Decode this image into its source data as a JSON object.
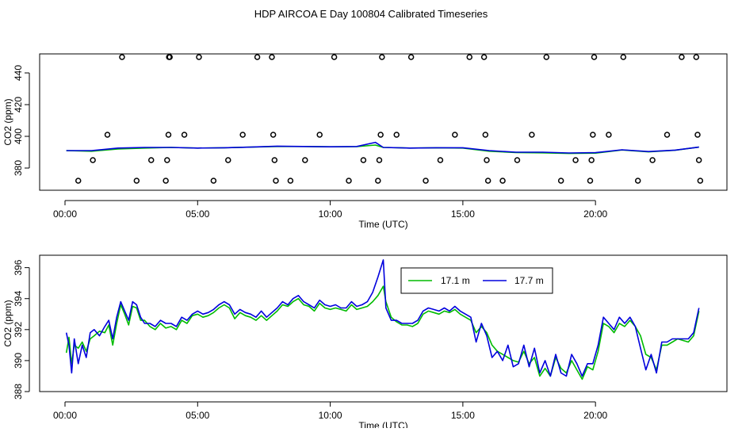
{
  "title": "HDP AIRCOA E  Day 100804  Calibrated Timeseries",
  "colors": {
    "green": "#00bb00",
    "blue": "#0000dd",
    "axis": "#000000"
  },
  "chart_data": [
    {
      "type": "line",
      "name": "top-panel",
      "xlabel": "Time (UTC)",
      "ylabel": "CO2 (ppm)",
      "x_unit": "hours UTC",
      "xlim": [
        0,
        24
      ],
      "ylim": [
        366,
        452
      ],
      "x_ticks": [
        0,
        5,
        10,
        15,
        20
      ],
      "x_tick_labels": [
        "00:00",
        "05:00",
        "10:00",
        "15:00",
        "20:00"
      ],
      "y_ticks": [
        380,
        400,
        420,
        440
      ],
      "y_tick_labels": [
        "380",
        "400",
        "420",
        "440"
      ],
      "series": [
        {
          "color": "#00bb00",
          "x": [
            0.05,
            1,
            2,
            3,
            4,
            5,
            6,
            7,
            8,
            9,
            10,
            11,
            11.7,
            12,
            13,
            14,
            15,
            16,
            17,
            18,
            19,
            20,
            21,
            22,
            23,
            23.9
          ],
          "values": [
            391,
            390.6,
            392,
            392.6,
            393,
            392.6,
            392.8,
            393.2,
            393.6,
            393.6,
            393.4,
            393.5,
            394.5,
            393,
            392.6,
            392.8,
            392.6,
            390.6,
            389.8,
            389.6,
            389.2,
            389.4,
            391.4,
            390.2,
            391.2,
            393.2
          ]
        },
        {
          "color": "#0000dd",
          "x": [
            0.05,
            1,
            2,
            3,
            4,
            5,
            6,
            7,
            8,
            9,
            10,
            11,
            11.7,
            12,
            13,
            14,
            15,
            16,
            17,
            18,
            19,
            20,
            21,
            22,
            23,
            23.9
          ],
          "values": [
            391,
            391,
            392.6,
            393,
            393,
            392.6,
            392.8,
            393.2,
            393.8,
            393.6,
            393.4,
            393.6,
            396.2,
            393,
            392.6,
            392.8,
            392.8,
            391,
            390,
            390,
            389.5,
            389.7,
            391.5,
            390.4,
            391.3,
            393.2
          ]
        }
      ],
      "points": {
        "x": [
          0.5,
          1.05,
          1.6,
          2.15,
          2.7,
          3.25,
          3.8,
          3.85,
          3.9,
          3.92,
          3.95,
          4.5,
          5.05,
          5.6,
          6.15,
          6.7,
          7.25,
          7.8,
          7.85,
          7.9,
          7.95,
          8.5,
          9.05,
          9.6,
          10.15,
          10.7,
          11.25,
          11.8,
          11.85,
          11.9,
          11.95,
          12.5,
          13.05,
          13.6,
          14.15,
          14.7,
          15.25,
          15.8,
          15.85,
          15.9,
          15.95,
          16.5,
          17.05,
          17.6,
          18.15,
          18.7,
          19.25,
          19.8,
          19.85,
          19.9,
          19.95,
          20.5,
          21.05,
          21.6,
          22.15,
          22.7,
          23.25,
          23.8,
          23.85,
          23.9,
          23.95
        ],
        "values": [
          372,
          385,
          401,
          450,
          372,
          385,
          372,
          385,
          401,
          450,
          450,
          401,
          450,
          372,
          385,
          401,
          450,
          450,
          401,
          385,
          372,
          372,
          385,
          401,
          450,
          372,
          385,
          372,
          385,
          401,
          450,
          401,
          450,
          372,
          385,
          401,
          450,
          450,
          401,
          385,
          372,
          372,
          385,
          401,
          450,
          372,
          385,
          372,
          385,
          401,
          450,
          401,
          450,
          372,
          385,
          401,
          450,
          450,
          401,
          385,
          372
        ]
      }
    },
    {
      "type": "line",
      "name": "bottom-panel",
      "xlabel": "Time (UTC)",
      "ylabel": "CO2 (ppm)",
      "x_unit": "hours UTC",
      "xlim": [
        0,
        24
      ],
      "ylim": [
        388,
        396.8
      ],
      "x_ticks": [
        0,
        5,
        10,
        15,
        20
      ],
      "x_tick_labels": [
        "00:00",
        "05:00",
        "10:00",
        "15:00",
        "20:00"
      ],
      "y_ticks": [
        388,
        390,
        392,
        394,
        396
      ],
      "y_tick_labels": [
        "388",
        "390",
        "392",
        "394",
        "396"
      ],
      "legend": {
        "placement": "top-right",
        "entries": [
          "17.1 m",
          "17.7 m"
        ]
      },
      "series": [
        {
          "name": "17.1 m",
          "color": "#00bb00",
          "x": [
            0.05,
            0.15,
            0.25,
            0.35,
            0.5,
            0.65,
            0.8,
            0.95,
            1.1,
            1.3,
            1.5,
            1.65,
            1.8,
            1.95,
            2.1,
            2.25,
            2.4,
            2.55,
            2.7,
            2.85,
            3.0,
            3.2,
            3.4,
            3.6,
            3.8,
            4.0,
            4.2,
            4.4,
            4.6,
            4.8,
            5.0,
            5.2,
            5.4,
            5.6,
            5.8,
            6.0,
            6.2,
            6.4,
            6.6,
            6.8,
            7.0,
            7.2,
            7.4,
            7.6,
            7.8,
            8.0,
            8.2,
            8.4,
            8.6,
            8.8,
            9.0,
            9.2,
            9.4,
            9.6,
            9.8,
            10.0,
            10.2,
            10.4,
            10.6,
            10.8,
            11.0,
            11.2,
            11.4,
            11.6,
            11.8,
            12.0,
            12.1,
            12.3,
            12.5,
            12.7,
            12.9,
            13.1,
            13.3,
            13.5,
            13.7,
            13.9,
            14.1,
            14.3,
            14.5,
            14.7,
            14.9,
            15.1,
            15.3,
            15.5,
            15.7,
            15.9,
            16.1,
            16.3,
            16.5,
            16.7,
            16.9,
            17.1,
            17.3,
            17.5,
            17.7,
            17.9,
            18.1,
            18.3,
            18.5,
            18.7,
            18.9,
            19.1,
            19.3,
            19.5,
            19.7,
            19.9,
            20.1,
            20.3,
            20.5,
            20.7,
            20.9,
            21.1,
            21.3,
            21.5,
            21.7,
            21.9,
            22.1,
            22.3,
            22.5,
            22.7,
            22.9,
            23.1,
            23.3,
            23.5,
            23.7,
            23.9
          ],
          "values": [
            390.5,
            391.5,
            389.8,
            391,
            390.8,
            391.2,
            390.6,
            391.4,
            391.6,
            391.9,
            391.8,
            392.3,
            391.0,
            392.4,
            393.6,
            393.0,
            392.3,
            393.5,
            393.4,
            392.6,
            392.6,
            392.2,
            392.0,
            392.4,
            392.1,
            392.2,
            392.0,
            392.6,
            392.4,
            392.9,
            393.0,
            392.8,
            392.9,
            393.1,
            393.4,
            393.6,
            393.4,
            392.7,
            393.1,
            392.9,
            392.8,
            392.6,
            392.9,
            392.6,
            392.9,
            393.2,
            393.6,
            393.5,
            393.8,
            394.0,
            393.6,
            393.5,
            393.2,
            393.7,
            393.4,
            393.3,
            393.4,
            393.3,
            393.2,
            393.6,
            393.3,
            393.4,
            393.5,
            393.8,
            394.2,
            394.8,
            393.8,
            392.8,
            392.5,
            392.3,
            392.3,
            392.2,
            392.4,
            393.0,
            393.2,
            393.1,
            393.0,
            393.2,
            393.1,
            393.3,
            393.0,
            392.8,
            392.6,
            391.8,
            392.2,
            391.8,
            391.0,
            390.6,
            390.4,
            390.2,
            390.0,
            389.9,
            390.6,
            389.8,
            390.2,
            389.0,
            389.5,
            389.0,
            390.2,
            389.5,
            389.2,
            390.0,
            389.4,
            388.8,
            389.6,
            389.4,
            390.6,
            392.4,
            392.2,
            391.8,
            392.4,
            392.2,
            392.6,
            392.2,
            391.6,
            390.4,
            390.2,
            389.4,
            391.0,
            391.0,
            391.2,
            391.4,
            391.3,
            391.2,
            391.6,
            393.2
          ]
        },
        {
          "name": "17.7 m",
          "color": "#0000dd",
          "x": [
            0.05,
            0.15,
            0.25,
            0.35,
            0.5,
            0.65,
            0.8,
            0.95,
            1.1,
            1.3,
            1.5,
            1.65,
            1.8,
            1.95,
            2.1,
            2.25,
            2.4,
            2.55,
            2.7,
            2.85,
            3.0,
            3.2,
            3.4,
            3.6,
            3.8,
            4.0,
            4.2,
            4.4,
            4.6,
            4.8,
            5.0,
            5.2,
            5.4,
            5.6,
            5.8,
            6.0,
            6.2,
            6.4,
            6.6,
            6.8,
            7.0,
            7.2,
            7.4,
            7.6,
            7.8,
            8.0,
            8.2,
            8.4,
            8.6,
            8.8,
            9.0,
            9.2,
            9.4,
            9.6,
            9.8,
            10.0,
            10.2,
            10.4,
            10.6,
            10.8,
            11.0,
            11.2,
            11.4,
            11.6,
            11.8,
            12.0,
            12.1,
            12.3,
            12.5,
            12.7,
            12.9,
            13.1,
            13.3,
            13.5,
            13.7,
            13.9,
            14.1,
            14.3,
            14.5,
            14.7,
            14.9,
            15.1,
            15.3,
            15.5,
            15.7,
            15.9,
            16.1,
            16.3,
            16.5,
            16.7,
            16.9,
            17.1,
            17.3,
            17.5,
            17.7,
            17.9,
            18.1,
            18.3,
            18.5,
            18.7,
            18.9,
            19.1,
            19.3,
            19.5,
            19.7,
            19.9,
            20.1,
            20.3,
            20.5,
            20.7,
            20.9,
            21.1,
            21.3,
            21.5,
            21.7,
            21.9,
            22.1,
            22.3,
            22.5,
            22.7,
            22.9,
            23.1,
            23.3,
            23.5,
            23.7,
            23.9
          ],
          "values": [
            391.8,
            391.0,
            389.2,
            391.4,
            389.8,
            391.0,
            390.2,
            391.8,
            392.0,
            391.6,
            392.2,
            392.6,
            391.4,
            392.8,
            393.8,
            393.2,
            392.6,
            393.8,
            393.6,
            392.8,
            392.4,
            392.4,
            392.2,
            392.6,
            392.4,
            392.4,
            392.2,
            392.8,
            392.6,
            393.0,
            393.2,
            393.0,
            393.1,
            393.3,
            393.6,
            393.8,
            393.6,
            393.0,
            393.3,
            393.1,
            393.0,
            392.8,
            393.2,
            392.8,
            393.1,
            393.4,
            393.8,
            393.6,
            394.0,
            394.2,
            393.8,
            393.6,
            393.4,
            393.9,
            393.6,
            393.5,
            393.6,
            393.4,
            393.4,
            393.8,
            393.5,
            393.6,
            393.8,
            394.4,
            395.4,
            396.5,
            393.4,
            392.6,
            392.6,
            392.4,
            392.4,
            392.4,
            392.6,
            393.2,
            393.4,
            393.3,
            393.2,
            393.4,
            393.2,
            393.5,
            393.2,
            393.0,
            392.8,
            391.2,
            392.4,
            391.6,
            390.2,
            390.6,
            390.0,
            391.0,
            389.6,
            389.8,
            391.0,
            389.6,
            390.8,
            389.2,
            390.0,
            389.0,
            390.4,
            389.2,
            389.0,
            390.4,
            389.8,
            389.0,
            389.8,
            389.8,
            391.0,
            392.8,
            392.4,
            392.0,
            392.8,
            392.4,
            392.8,
            392.2,
            390.8,
            389.4,
            390.4,
            389.2,
            391.2,
            391.2,
            391.4,
            391.4,
            391.4,
            391.4,
            391.8,
            393.4
          ]
        }
      ]
    }
  ]
}
